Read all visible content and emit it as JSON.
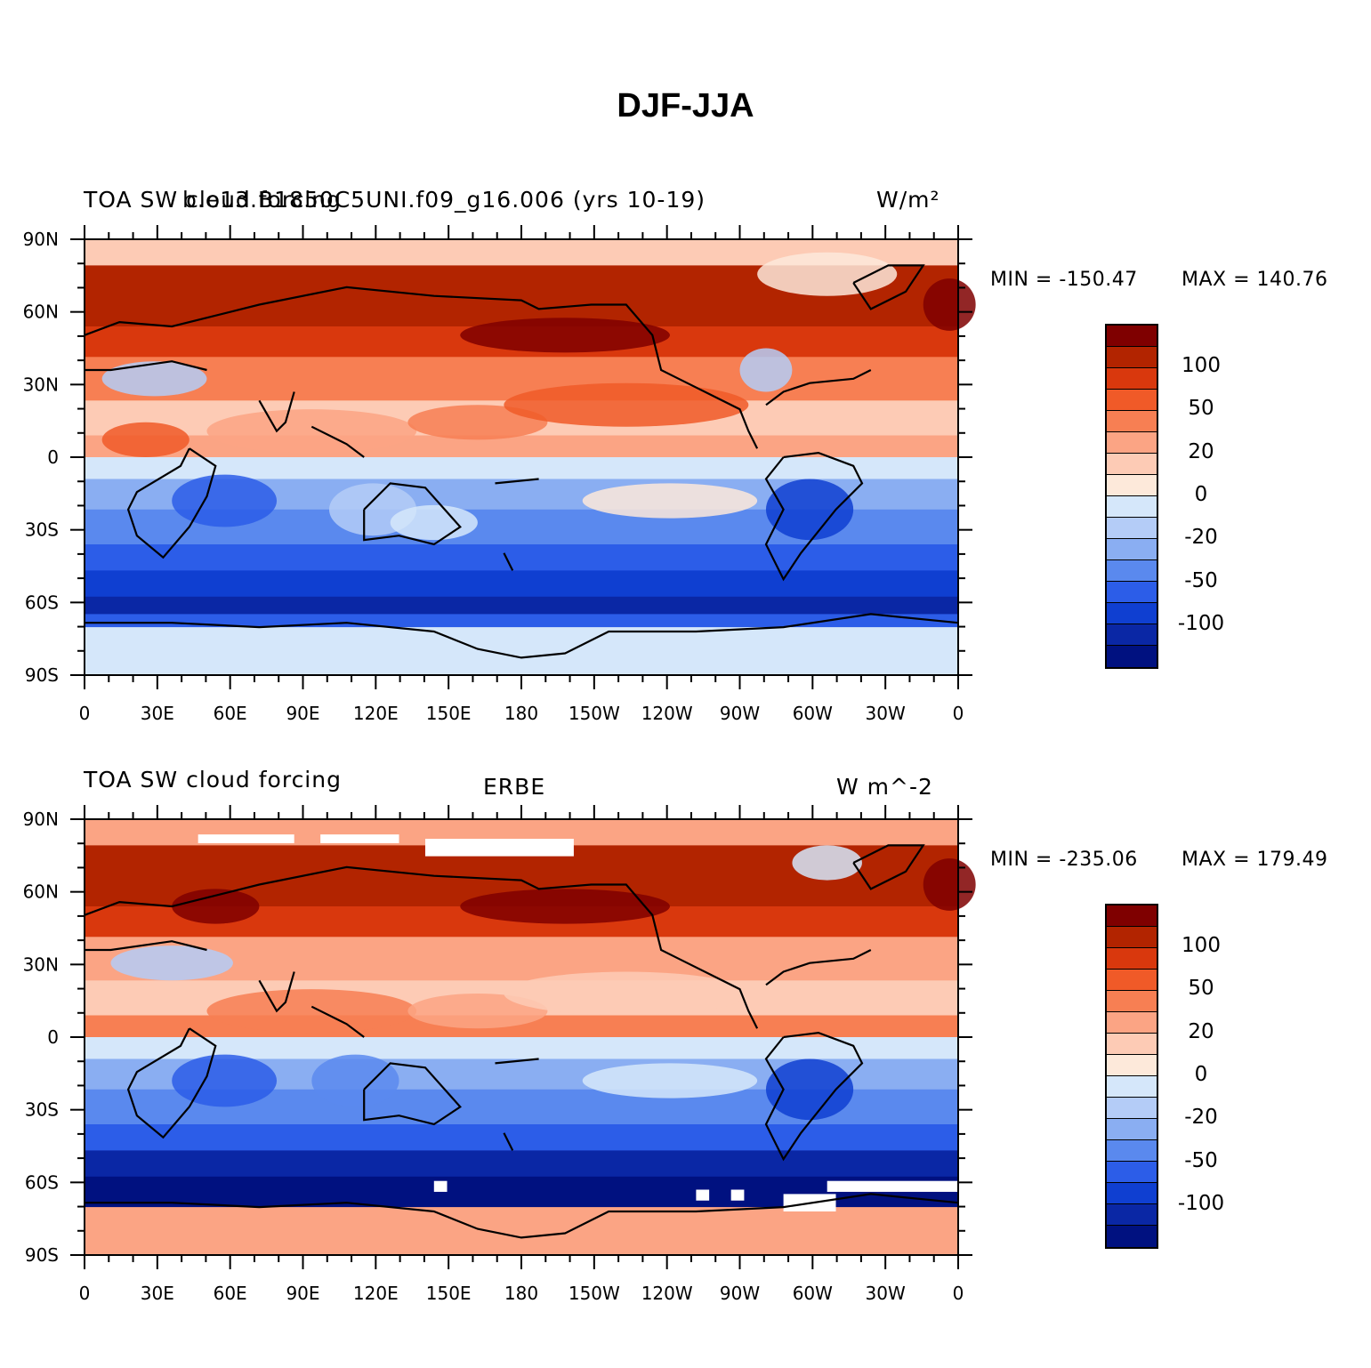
{
  "figure": {
    "title": "DJF-JJA"
  },
  "lon_labels": [
    "0",
    "30E",
    "60E",
    "90E",
    "120E",
    "150E",
    "180",
    "150W",
    "120W",
    "90W",
    "60W",
    "30W",
    "0"
  ],
  "lat_labels": [
    "90N",
    "60N",
    "30N",
    "0",
    "30S",
    "60S",
    "90S"
  ],
  "colors": {
    "levels": [
      "#7f0000",
      "#b22400",
      "#d9380d",
      "#f05a28",
      "#f77f53",
      "#fba484",
      "#fdcbb5",
      "#fde9da",
      "#d5e7fa",
      "#b4ccf7",
      "#8aaef2",
      "#5a89ee",
      "#2c5de8",
      "#0f3fd1",
      "#0a27a5",
      "#001180"
    ]
  },
  "panels": [
    {
      "id": "top",
      "title_left": "TOA SW cloud forcing",
      "title_center": "b.e13.B1850C5UNI.f09_g16.006 (yrs 10-19)",
      "title_right": "W/m²",
      "min_label": "MIN = -150.47",
      "max_label": "MAX = 140.76"
    },
    {
      "id": "bottom",
      "title_left": "TOA SW cloud forcing",
      "title_center": "ERBE",
      "title_right": "W m^-2",
      "min_label": "MIN = -235.06",
      "max_label": "MAX = 179.49"
    }
  ],
  "colorbar": {
    "labels": [
      "100",
      "50",
      "20",
      "0",
      "-20",
      "-50",
      "-100"
    ]
  }
}
